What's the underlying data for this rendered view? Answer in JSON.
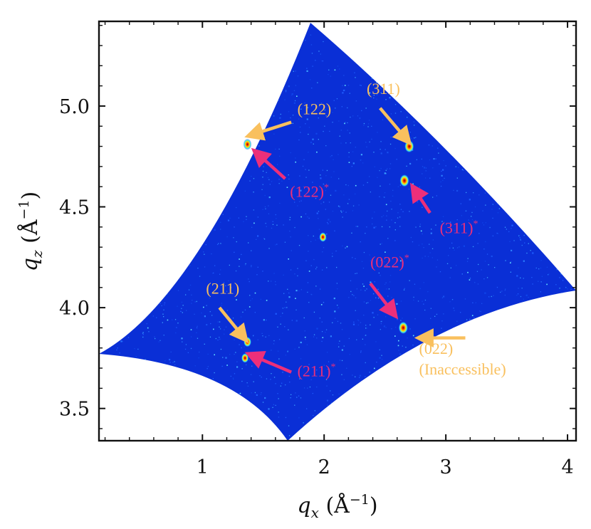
{
  "chart_data": {
    "type": "heatmap",
    "title": "",
    "xlabel": "q_x (Å^{-1})",
    "ylabel": "q_z (Å^{-1})",
    "xlim": [
      0.15,
      4.07
    ],
    "ylim": [
      3.34,
      5.42
    ],
    "x_ticks": [
      1,
      2,
      3,
      4
    ],
    "x_tick_labels": [
      "1",
      "2",
      "3",
      "4"
    ],
    "y_ticks": [
      3.5,
      4.0,
      4.5,
      5.0
    ],
    "y_tick_labels": [
      "3.5",
      "4.0",
      "4.5",
      "5.0"
    ],
    "colormap": "jet",
    "background_color": "#0a2fd6",
    "peaks": [
      {
        "qx": 1.37,
        "qz": 4.81,
        "intensity": 0.7
      },
      {
        "qx": 2.7,
        "qz": 4.8,
        "intensity": 1.0
      },
      {
        "qx": 2.66,
        "qz": 4.63,
        "intensity": 1.0
      },
      {
        "qx": 1.99,
        "qz": 4.35,
        "intensity": 0.5
      },
      {
        "qx": 2.65,
        "qz": 3.9,
        "intensity": 1.0
      },
      {
        "qx": 1.37,
        "qz": 3.83,
        "intensity": 0.6
      },
      {
        "qx": 1.35,
        "qz": 3.75,
        "intensity": 0.5
      }
    ],
    "annotations": [
      {
        "name": "122",
        "text": "(122)",
        "star": false,
        "color": "#f9c05e",
        "text_at": [
          1.78,
          4.96
        ],
        "arrow_from": [
          1.73,
          4.92
        ],
        "arrow_to": [
          1.42,
          4.86
        ]
      },
      {
        "name": "122-star",
        "text": "(122)",
        "star": true,
        "color": "#ec2f7a",
        "text_at": [
          1.72,
          4.55
        ],
        "arrow_from": [
          1.68,
          4.64
        ],
        "arrow_to": [
          1.46,
          4.76
        ]
      },
      {
        "name": "311",
        "text": "(311)",
        "star": false,
        "color": "#f9c05e",
        "text_at": [
          2.35,
          5.06
        ],
        "arrow_from": [
          2.46,
          4.99
        ],
        "arrow_to": [
          2.67,
          4.84
        ]
      },
      {
        "name": "311-star",
        "text": "(311)",
        "star": true,
        "color": "#ec2f7a",
        "text_at": [
          2.95,
          4.37
        ],
        "arrow_from": [
          2.87,
          4.47
        ],
        "arrow_to": [
          2.75,
          4.58
        ]
      },
      {
        "name": "022-star",
        "text": "(022)",
        "star": true,
        "color": "#ec2f7a",
        "text_at": [
          2.38,
          4.2
        ],
        "arrow_from": [
          2.38,
          4.12
        ],
        "arrow_to": [
          2.56,
          3.98
        ]
      },
      {
        "name": "211",
        "text": "(211)",
        "star": false,
        "color": "#f9c05e",
        "text_at": [
          1.03,
          4.07
        ],
        "arrow_from": [
          1.14,
          4.0
        ],
        "arrow_to": [
          1.33,
          3.86
        ]
      },
      {
        "name": "211-star",
        "text": "(211)",
        "star": true,
        "color": "#ec2f7a",
        "text_at": [
          1.78,
          3.66
        ],
        "arrow_from": [
          1.73,
          3.68
        ],
        "arrow_to": [
          1.42,
          3.76
        ]
      },
      {
        "name": "022-inaccessible",
        "text": "(022)",
        "text2": "(Inaccessible)",
        "star": false,
        "color": "#f9c05e",
        "text_at": [
          2.78,
          3.77
        ],
        "arrow_from": [
          3.16,
          3.85
        ],
        "arrow_to": [
          2.82,
          3.85
        ]
      }
    ]
  }
}
